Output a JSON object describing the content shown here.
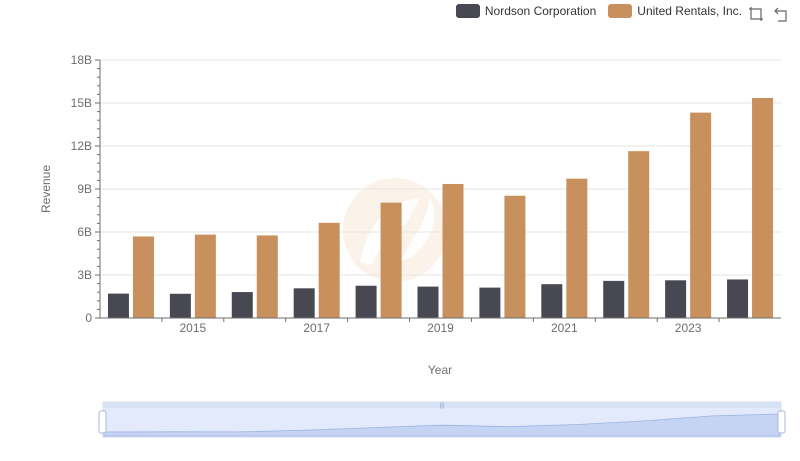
{
  "legend": {
    "items": [
      {
        "label": "Nordson Corporation",
        "color": "#484852"
      },
      {
        "label": "United Rentals, Inc.",
        "color": "#c8905c"
      }
    ]
  },
  "toolbox": {
    "zoom_icon": "zoom-select-icon",
    "restore_icon": "restore-icon"
  },
  "chart_data": {
    "type": "bar",
    "title": "",
    "xlabel": "Year",
    "ylabel": "Revenue",
    "categories": [
      "2014",
      "2015",
      "2016",
      "2017",
      "2018",
      "2019",
      "2020",
      "2021",
      "2022",
      "2023",
      "2024"
    ],
    "x_tick_labels": [
      "2015",
      "2017",
      "2019",
      "2021",
      "2023"
    ],
    "y_tick_labels": [
      "0",
      "3B",
      "6B",
      "9B",
      "12B",
      "15B",
      "18B"
    ],
    "ylim": [
      0,
      18000000000
    ],
    "grid": true,
    "legend_position": "top-right",
    "series": [
      {
        "name": "Nordson Corporation",
        "color": "#484852",
        "values": [
          1700000000,
          1690000000,
          1810000000,
          2070000000,
          2250000000,
          2190000000,
          2120000000,
          2360000000,
          2590000000,
          2630000000,
          2690000000
        ]
      },
      {
        "name": "United Rentals, Inc.",
        "color": "#c8905c",
        "values": [
          5690000000,
          5820000000,
          5760000000,
          6640000000,
          8050000000,
          9350000000,
          8530000000,
          9720000000,
          11640000000,
          14330000000,
          15350000000
        ]
      }
    ]
  },
  "slider": {
    "handle_color": "#a8b7d8",
    "fill_color": "#d6e2fb"
  }
}
